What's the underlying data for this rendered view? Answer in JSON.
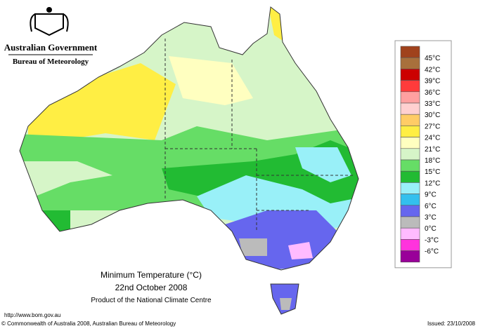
{
  "header": {
    "agency": "Australian Government",
    "bureau": "Bureau of Meteorology"
  },
  "title": {
    "line1": "Minimum Temperature (°C)",
    "date": "22nd October 2008",
    "product": "Product of the National Climate Centre"
  },
  "legend": {
    "labels": [
      "45°C",
      "42°C",
      "39°C",
      "36°C",
      "33°C",
      "30°C",
      "27°C",
      "24°C",
      "21°C",
      "18°C",
      "15°C",
      "12°C",
      "9°C",
      "6°C",
      "3°C",
      "0°C",
      "-3°C",
      "-6°C"
    ],
    "colors": [
      "#a0421c",
      "#a8703c",
      "#cc0000",
      "#ff3b3b",
      "#ffa0a0",
      "#ffd0d0",
      "#ffcc66",
      "#ffee44",
      "#ffffc0",
      "#d6f5c8",
      "#66dd66",
      "#22bb33",
      "#99f0f8",
      "#33c0ee",
      "#6666ee",
      "#bbbbbb",
      "#ffbbff",
      "#ff33dd",
      "#990099"
    ]
  },
  "footer": {
    "url": "http://www.bom.gov.au",
    "copyright": "© Commonwealth of Australia 2008, Australian Bureau of Meteorology",
    "issued": "Issued: 23/10/2008"
  }
}
